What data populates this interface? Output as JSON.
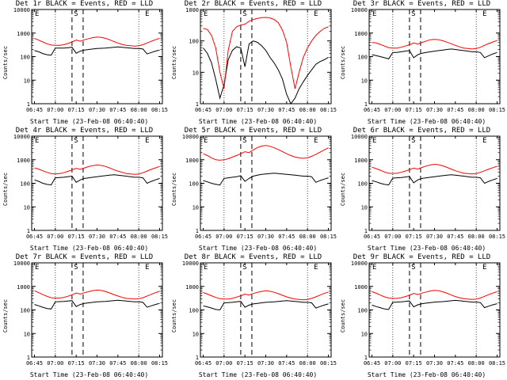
{
  "chart_data": [
    {
      "type": "line",
      "title": "Det 1r BLACK = Events, RED = LLD",
      "xlabel": "Start Time (23-Feb-08 06:40:40)",
      "ylabel": "Counts/sec",
      "ylim": [
        1,
        10000
      ],
      "ylog": true,
      "x": [
        "06:45",
        "06:48",
        "06:51",
        "06:54",
        "06:57",
        "07:00",
        "07:03",
        "07:06",
        "07:09",
        "07:12",
        "07:15",
        "07:18",
        "07:21",
        "07:24",
        "07:27",
        "07:30",
        "07:33",
        "07:36",
        "07:39",
        "07:42",
        "07:45",
        "07:48",
        "07:51",
        "07:54",
        "07:57",
        "08:00",
        "08:03",
        "08:06",
        "08:09",
        "08:12",
        "08:15"
      ],
      "series": [
        {
          "name": "Events",
          "color": "#000000",
          "values": [
            180,
            160,
            135,
            120,
            115,
            230,
            230,
            230,
            240,
            250,
            140,
            170,
            190,
            200,
            210,
            220,
            225,
            230,
            240,
            250,
            260,
            250,
            240,
            230,
            220,
            220,
            210,
            130,
            150,
            170,
            190
          ]
        },
        {
          "name": "LLD",
          "color": "#ff0000",
          "values": [
            600,
            500,
            420,
            350,
            310,
            300,
            300,
            320,
            360,
            420,
            500,
            450,
            520,
            580,
            640,
            680,
            650,
            600,
            520,
            440,
            380,
            330,
            300,
            290,
            280,
            290,
            320,
            380,
            450,
            520,
            600
          ]
        }
      ]
    },
    {
      "type": "line",
      "title": "Det 2r BLACK = Events, RED = LLD",
      "xlabel": "Start Time (23-Feb-08 06:40:40)",
      "ylabel": "Counts/sec",
      "ylim": [
        1,
        1000
      ],
      "ylog": true,
      "x": [
        "06:45",
        "06:48",
        "06:51",
        "06:54",
        "06:57",
        "07:00",
        "07:03",
        "07:06",
        "07:09",
        "07:12",
        "07:15",
        "07:18",
        "07:21",
        "07:24",
        "07:27",
        "07:30",
        "07:33",
        "07:36",
        "07:39",
        "07:42",
        "07:45",
        "07:48",
        "07:51",
        "07:54",
        "07:57",
        "08:00",
        "08:03",
        "08:06",
        "08:09",
        "08:12",
        "08:15"
      ],
      "series": [
        {
          "name": "Events",
          "color": "#000000",
          "values": [
            60,
            40,
            20,
            6,
            1.5,
            4,
            25,
            50,
            65,
            60,
            15,
            80,
            100,
            90,
            70,
            50,
            30,
            20,
            12,
            6,
            2,
            1,
            1.5,
            3,
            5,
            8,
            12,
            18,
            22,
            25,
            30
          ]
        },
        {
          "name": "LLD",
          "color": "#ff0000",
          "values": [
            250,
            230,
            150,
            60,
            10,
            3,
            50,
            200,
            280,
            320,
            340,
            420,
            480,
            520,
            550,
            560,
            540,
            480,
            380,
            220,
            90,
            15,
            3,
            10,
            30,
            60,
            100,
            150,
            200,
            250,
            280
          ]
        }
      ]
    },
    {
      "type": "line",
      "title": "Det 3r BLACK = Events, RED = LLD",
      "xlabel": "Start Time (23-Feb-08 06:40:40)",
      "ylabel": "Counts/sec",
      "ylim": [
        1,
        10000
      ],
      "ylog": true,
      "x": [
        "06:45",
        "06:48",
        "06:51",
        "06:54",
        "06:57",
        "07:00",
        "07:03",
        "07:06",
        "07:09",
        "07:12",
        "07:15",
        "07:18",
        "07:21",
        "07:24",
        "07:27",
        "07:30",
        "07:33",
        "07:36",
        "07:39",
        "07:42",
        "07:45",
        "07:48",
        "07:51",
        "07:54",
        "07:57",
        "08:00",
        "08:03",
        "08:06",
        "08:09",
        "08:12",
        "08:15"
      ],
      "series": [
        {
          "name": "Events",
          "color": "#000000",
          "values": [
            120,
            110,
            100,
            90,
            80,
            150,
            150,
            160,
            170,
            180,
            90,
            120,
            140,
            150,
            160,
            170,
            180,
            190,
            200,
            210,
            200,
            190,
            180,
            170,
            160,
            160,
            150,
            90,
            110,
            130,
            150
          ]
        },
        {
          "name": "LLD",
          "color": "#ff0000",
          "values": [
            400,
            380,
            330,
            280,
            240,
            230,
            230,
            250,
            280,
            320,
            380,
            340,
            400,
            460,
            520,
            540,
            520,
            470,
            410,
            350,
            300,
            260,
            230,
            220,
            210,
            220,
            250,
            300,
            360,
            420,
            480
          ]
        }
      ]
    },
    {
      "type": "line",
      "title": "Det 4r BLACK = Events, RED = LLD",
      "xlabel": "Start Time (23-Feb-08 06:40:40)",
      "ylabel": "Counts/sec",
      "ylim": [
        1,
        10000
      ],
      "ylog": true,
      "x": [
        "06:45",
        "06:48",
        "06:51",
        "06:54",
        "06:57",
        "07:00",
        "07:03",
        "07:06",
        "07:09",
        "07:12",
        "07:15",
        "07:18",
        "07:21",
        "07:24",
        "07:27",
        "07:30",
        "07:33",
        "07:36",
        "07:39",
        "07:42",
        "07:45",
        "07:48",
        "07:51",
        "07:54",
        "07:57",
        "08:00",
        "08:03",
        "08:06",
        "08:09",
        "08:12",
        "08:15"
      ],
      "series": [
        {
          "name": "Events",
          "color": "#000000",
          "values": [
            140,
            120,
            100,
            90,
            85,
            170,
            175,
            180,
            190,
            200,
            110,
            140,
            160,
            170,
            180,
            190,
            200,
            210,
            220,
            230,
            220,
            210,
            200,
            190,
            180,
            180,
            170,
            100,
            120,
            140,
            160
          ]
        },
        {
          "name": "LLD",
          "color": "#ff0000",
          "values": [
            450,
            400,
            340,
            290,
            260,
            250,
            260,
            280,
            320,
            370,
            430,
            390,
            450,
            510,
            560,
            600,
            570,
            520,
            450,
            380,
            330,
            290,
            260,
            250,
            240,
            250,
            280,
            330,
            390,
            450,
            520
          ]
        }
      ]
    },
    {
      "type": "line",
      "title": "Det 5r BLACK = Events, RED = LLD",
      "xlabel": "Start Time (23-Feb-08 06:40:40)",
      "ylabel": "Counts/sec",
      "ylim": [
        1,
        10000
      ],
      "ylog": true,
      "x": [
        "06:45",
        "06:48",
        "06:51",
        "06:54",
        "06:57",
        "07:00",
        "07:03",
        "07:06",
        "07:09",
        "07:12",
        "07:15",
        "07:18",
        "07:21",
        "07:24",
        "07:27",
        "07:30",
        "07:33",
        "07:36",
        "07:39",
        "07:42",
        "07:45",
        "07:48",
        "07:51",
        "07:54",
        "07:57",
        "08:00",
        "08:03",
        "08:06",
        "08:09",
        "08:12",
        "08:15"
      ],
      "series": [
        {
          "name": "Events",
          "color": "#000000",
          "values": [
            130,
            115,
            100,
            90,
            85,
            160,
            170,
            180,
            190,
            210,
            120,
            160,
            200,
            220,
            240,
            250,
            260,
            270,
            260,
            250,
            240,
            230,
            220,
            210,
            200,
            200,
            190,
            110,
            130,
            150,
            170
          ]
        },
        {
          "name": "LLD",
          "color": "#ff0000",
          "values": [
            1800,
            1500,
            1200,
            1000,
            950,
            1000,
            1100,
            1300,
            1500,
            1800,
            2200,
            2000,
            2600,
            3300,
            3800,
            4000,
            3700,
            3200,
            2700,
            2200,
            1800,
            1500,
            1300,
            1200,
            1150,
            1200,
            1400,
            1700,
            2100,
            2600,
            3200
          ]
        }
      ]
    },
    {
      "type": "line",
      "title": "Det 6r BLACK = Events, RED = LLD",
      "xlabel": "Start Time (23-Feb-08 06:40:40)",
      "ylabel": "Counts/sec",
      "ylim": [
        1,
        10000
      ],
      "ylog": true,
      "x": [
        "06:45",
        "06:48",
        "06:51",
        "06:54",
        "06:57",
        "07:00",
        "07:03",
        "07:06",
        "07:09",
        "07:12",
        "07:15",
        "07:18",
        "07:21",
        "07:24",
        "07:27",
        "07:30",
        "07:33",
        "07:36",
        "07:39",
        "07:42",
        "07:45",
        "07:48",
        "07:51",
        "07:54",
        "07:57",
        "08:00",
        "08:03",
        "08:06",
        "08:09",
        "08:12",
        "08:15"
      ],
      "series": [
        {
          "name": "Events",
          "color": "#000000",
          "values": [
            130,
            115,
            100,
            90,
            85,
            165,
            170,
            175,
            185,
            195,
            105,
            140,
            160,
            170,
            180,
            190,
            200,
            210,
            220,
            230,
            220,
            210,
            200,
            190,
            180,
            180,
            170,
            100,
            120,
            140,
            160
          ]
        },
        {
          "name": "LLD",
          "color": "#ff0000",
          "values": [
            480,
            420,
            360,
            300,
            270,
            260,
            270,
            290,
            330,
            380,
            440,
            400,
            470,
            540,
            600,
            640,
            610,
            550,
            470,
            400,
            340,
            300,
            270,
            260,
            250,
            260,
            290,
            340,
            400,
            460,
            530
          ]
        }
      ]
    },
    {
      "type": "line",
      "title": "Det 7r BLACK = Events, RED = LLD",
      "xlabel": "Start Time (23-Feb-08 06:40:40)",
      "ylabel": "Counts/sec",
      "ylim": [
        1,
        10000
      ],
      "ylog": true,
      "x": [
        "06:45",
        "06:48",
        "06:51",
        "06:54",
        "06:57",
        "07:00",
        "07:03",
        "07:06",
        "07:09",
        "07:12",
        "07:15",
        "07:18",
        "07:21",
        "07:24",
        "07:27",
        "07:30",
        "07:33",
        "07:36",
        "07:39",
        "07:42",
        "07:45",
        "07:48",
        "07:51",
        "07:54",
        "07:57",
        "08:00",
        "08:03",
        "08:06",
        "08:09",
        "08:12",
        "08:15"
      ],
      "series": [
        {
          "name": "Events",
          "color": "#000000",
          "values": [
            170,
            150,
            130,
            115,
            110,
            220,
            225,
            230,
            240,
            250,
            140,
            170,
            190,
            200,
            210,
            220,
            225,
            230,
            240,
            250,
            260,
            250,
            240,
            230,
            220,
            220,
            210,
            130,
            150,
            170,
            190
          ]
        },
        {
          "name": "LLD",
          "color": "#ff0000",
          "values": [
            650,
            540,
            450,
            380,
            330,
            320,
            320,
            340,
            380,
            440,
            520,
            470,
            540,
            600,
            660,
            700,
            670,
            610,
            530,
            450,
            390,
            340,
            310,
            300,
            290,
            300,
            330,
            390,
            460,
            540,
            620
          ]
        }
      ]
    },
    {
      "type": "line",
      "title": "Det 8r BLACK = Events, RED = LLD",
      "xlabel": "Start Time (23-Feb-08 06:40:40)",
      "ylabel": "Counts/sec",
      "ylim": [
        1,
        10000
      ],
      "ylog": true,
      "x": [
        "06:45",
        "06:48",
        "06:51",
        "06:54",
        "06:57",
        "07:00",
        "07:03",
        "07:06",
        "07:09",
        "07:12",
        "07:15",
        "07:18",
        "07:21",
        "07:24",
        "07:27",
        "07:30",
        "07:33",
        "07:36",
        "07:39",
        "07:42",
        "07:45",
        "07:48",
        "07:51",
        "07:54",
        "07:57",
        "08:00",
        "08:03",
        "08:06",
        "08:09",
        "08:12",
        "08:15"
      ],
      "series": [
        {
          "name": "Events",
          "color": "#000000",
          "values": [
            150,
            135,
            120,
            105,
            100,
            200,
            205,
            210,
            220,
            230,
            130,
            160,
            180,
            190,
            200,
            210,
            215,
            220,
            230,
            240,
            250,
            240,
            230,
            220,
            210,
            210,
            200,
            120,
            140,
            160,
            180
          ]
        },
        {
          "name": "LLD",
          "color": "#ff0000",
          "values": [
            550,
            470,
            400,
            340,
            300,
            290,
            290,
            310,
            350,
            400,
            470,
            430,
            500,
            560,
            610,
            650,
            620,
            560,
            490,
            420,
            360,
            320,
            290,
            280,
            270,
            280,
            310,
            360,
            430,
            500,
            580
          ]
        }
      ]
    },
    {
      "type": "line",
      "title": "Det 9r BLACK = Events, RED = LLD",
      "xlabel": "Start Time (23-Feb-08 06:40:40)",
      "ylabel": "Counts/sec",
      "ylim": [
        1,
        10000
      ],
      "ylog": true,
      "x": [
        "06:45",
        "06:48",
        "06:51",
        "06:54",
        "06:57",
        "07:00",
        "07:03",
        "07:06",
        "07:09",
        "07:12",
        "07:15",
        "07:18",
        "07:21",
        "07:24",
        "07:27",
        "07:30",
        "07:33",
        "07:36",
        "07:39",
        "07:42",
        "07:45",
        "07:48",
        "07:51",
        "07:54",
        "07:57",
        "08:00",
        "08:03",
        "08:06",
        "08:09",
        "08:12",
        "08:15"
      ],
      "series": [
        {
          "name": "Events",
          "color": "#000000",
          "values": [
            160,
            140,
            125,
            110,
            105,
            210,
            215,
            220,
            230,
            240,
            135,
            165,
            185,
            195,
            205,
            215,
            220,
            225,
            235,
            245,
            255,
            245,
            235,
            225,
            215,
            215,
            205,
            125,
            145,
            165,
            185
          ]
        },
        {
          "name": "LLD",
          "color": "#ff0000",
          "values": [
            600,
            510,
            430,
            360,
            320,
            310,
            310,
            330,
            370,
            420,
            500,
            450,
            520,
            580,
            640,
            680,
            650,
            590,
            510,
            430,
            370,
            330,
            300,
            290,
            280,
            290,
            320,
            380,
            450,
            520,
            600
          ]
        }
      ]
    }
  ],
  "x_ticks": [
    "06:45",
    "07:00",
    "07:15",
    "07:30",
    "07:45",
    "08:00",
    "08:15"
  ],
  "y_ticks": {
    "1": "1",
    "10": "10",
    "100": "100",
    "1000": "1000",
    "10000": "10000"
  },
  "markers": {
    "start": "E",
    "mid": "S",
    "end": "E"
  }
}
